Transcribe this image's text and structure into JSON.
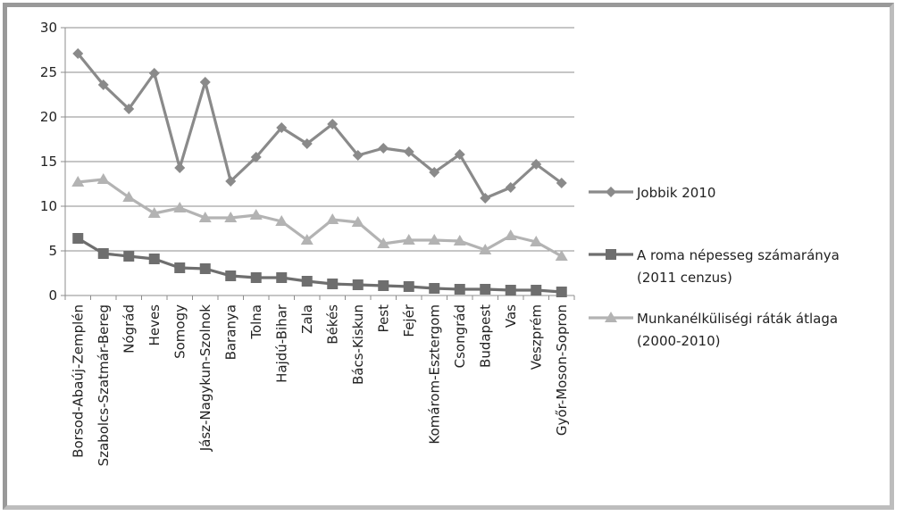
{
  "chart_data": {
    "type": "line",
    "title": "",
    "xlabel": "",
    "ylabel": "",
    "ylim": [
      0,
      30
    ],
    "yticks": [
      "0",
      "5",
      "10",
      "15",
      "20",
      "25",
      "30"
    ],
    "grid": true,
    "legend_position": "right",
    "categories": [
      "Borsod-Abaúj-Zemplén",
      "Szabolcs-Szatmár-Bereg",
      "Nógrád",
      "Heves",
      "Somogy",
      "Jász-Nagykun-Szolnok",
      "Baranya",
      "Tolna",
      "Hajdú-Bihar",
      "Zala",
      "Békés",
      "Bács-Kiskun",
      "Pest",
      "Fejér",
      "Komárom-Esztergom",
      "Csongrád",
      "Budapest",
      "Vas",
      "Veszprém",
      "Győr-Moson-Sopron"
    ],
    "series": [
      {
        "name": "Jobbik 2010",
        "legend_lines": [
          "Jobbik 2010"
        ],
        "color": "#8a8a8a",
        "marker": "diamond",
        "values": [
          27.1,
          23.6,
          20.9,
          24.9,
          14.3,
          23.9,
          12.8,
          15.5,
          18.8,
          17.0,
          19.2,
          15.7,
          16.5,
          16.1,
          13.8,
          15.8,
          10.9,
          12.1,
          14.7,
          12.6
        ]
      },
      {
        "name": "A roma népesseg számaránya (2011 cenzus)",
        "legend_lines": [
          "A roma népesseg számaránya",
          "(2011 cenzus)"
        ],
        "color": "#6e6e6e",
        "marker": "square",
        "values": [
          6.4,
          4.7,
          4.4,
          4.1,
          3.1,
          3.0,
          2.2,
          2.0,
          2.0,
          1.6,
          1.3,
          1.2,
          1.1,
          1.0,
          0.8,
          0.7,
          0.7,
          0.6,
          0.6,
          0.4
        ]
      },
      {
        "name": "Munkanélküliségi ráták átlaga (2000-2010)",
        "legend_lines": [
          "Munkanélküliségi ráták átlaga",
          "(2000-2010)"
        ],
        "color": "#b3b3b3",
        "marker": "triangle",
        "values": [
          12.7,
          13.0,
          11.0,
          9.2,
          9.8,
          8.7,
          8.7,
          9.0,
          8.3,
          6.2,
          8.5,
          8.2,
          5.8,
          6.2,
          6.2,
          6.1,
          5.1,
          6.7,
          6.0,
          4.4
        ]
      }
    ]
  }
}
